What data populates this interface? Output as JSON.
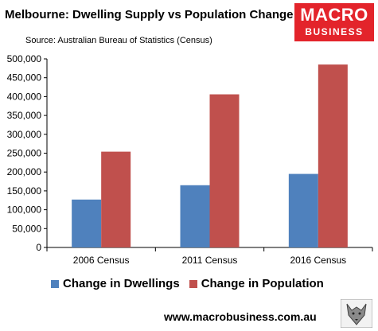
{
  "header": {
    "title": "Melbourne: Dwelling Supply vs Population Change",
    "source": "Source: Australian Bureau of Statistics (Census)"
  },
  "logo": {
    "line1": "MACRO",
    "line2": "BUSINESS"
  },
  "footer": {
    "url": "www.macrobusiness.com.au"
  },
  "colors": {
    "dwellings": "#4f81bd",
    "population": "#c0504d",
    "logo_bg": "#e3242b"
  },
  "chart_data": {
    "type": "bar",
    "categories": [
      "2006 Census",
      "2011 Census",
      "2016 Census"
    ],
    "series": [
      {
        "name": "Change in Dwellings",
        "values": [
          127000,
          165000,
          195000
        ]
      },
      {
        "name": "Change in Population",
        "values": [
          254000,
          406000,
          485000
        ]
      }
    ],
    "ylim": [
      0,
      500000
    ],
    "yticks": [
      "0",
      "50,000",
      "100,000",
      "150,000",
      "200,000",
      "250,000",
      "300,000",
      "350,000",
      "400,000",
      "450,000",
      "500,000"
    ],
    "grid": false,
    "legend": "bottom"
  }
}
